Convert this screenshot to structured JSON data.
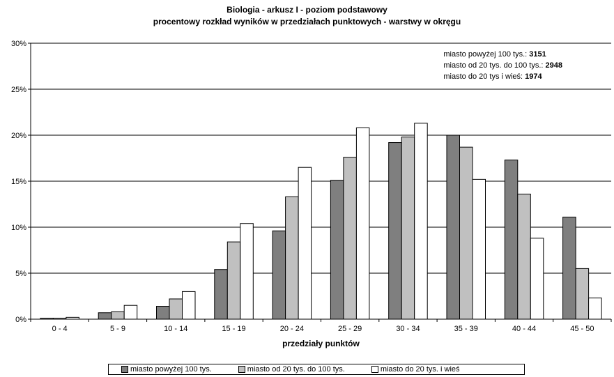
{
  "chart_data": {
    "type": "bar",
    "title": "Biologia - arkusz I - poziom podstawowy",
    "subtitle": "procentowy rozkład  wyników w przedziałach punktowych - warstwy w okręgu",
    "xlabel": "przedziały punktów",
    "ylabel": "",
    "ylim": [
      0,
      30
    ],
    "yticks": [
      "0%",
      "5%",
      "10%",
      "15%",
      "20%",
      "25%",
      "30%"
    ],
    "grid": true,
    "legend_position": "bottom",
    "categories": [
      "0 - 4",
      "5 - 9",
      "10 - 14",
      "15 - 19",
      "20 - 24",
      "25 - 29",
      "30 - 34",
      "35 - 39",
      "40 - 44",
      "45 - 50"
    ],
    "series": [
      {
        "name": "miasto powyżej 100 tys.",
        "color": "#7f7f7f",
        "values": [
          0.1,
          0.7,
          1.4,
          5.4,
          9.6,
          15.1,
          19.2,
          20.0,
          17.3,
          11.1
        ]
      },
      {
        "name": "miasto od 20 tys. do 100 tys.",
        "color": "#c0c0c0",
        "values": [
          0.1,
          0.8,
          2.2,
          8.4,
          13.3,
          17.6,
          19.8,
          18.7,
          13.6,
          5.5
        ]
      },
      {
        "name": "miasto do 20 tys. i wieś",
        "color": "#ffffff",
        "values": [
          0.2,
          1.5,
          3.0,
          10.4,
          16.5,
          20.8,
          21.3,
          15.2,
          8.8,
          2.3
        ]
      }
    ],
    "annotations": [
      {
        "label": "miasto powyżej 100 tys.:",
        "value": "3151"
      },
      {
        "label": "miasto od 20 tys. do 100 tys.:",
        "value": "2948"
      },
      {
        "label": "miasto do 20 tys i wieś:",
        "value": "1974"
      }
    ]
  }
}
